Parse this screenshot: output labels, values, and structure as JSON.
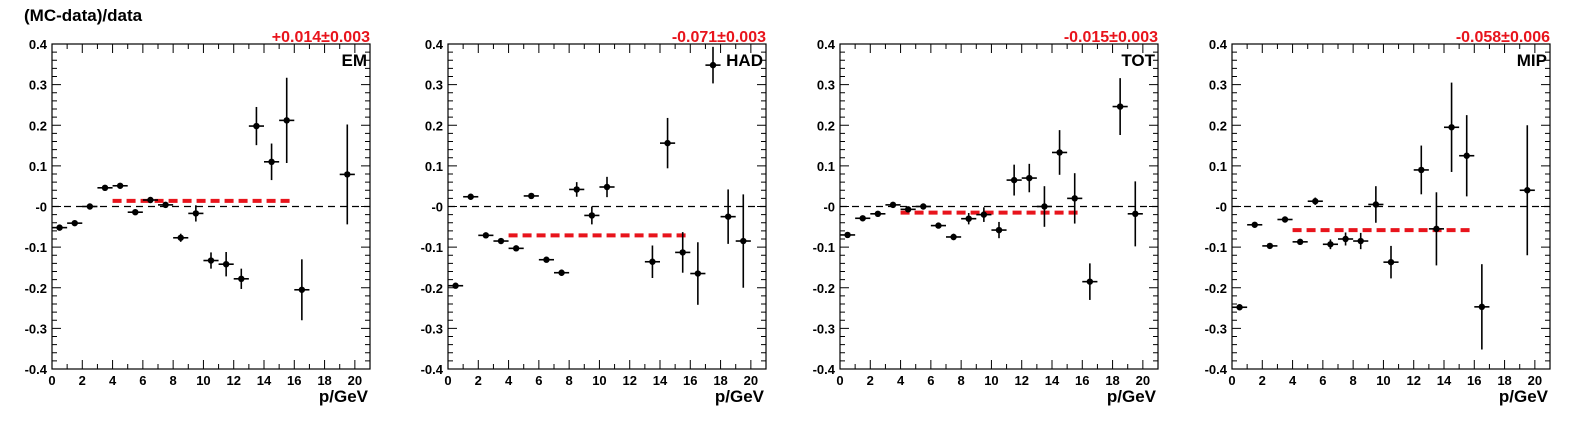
{
  "figure": {
    "ylabel": "(MC-data)/data"
  },
  "chart_data": [
    {
      "type": "scatter",
      "label": "EM",
      "fit_text": "+0.014±0.003",
      "fit_value": 0.014,
      "fit_range": [
        4,
        16
      ],
      "xlabel": "p/GeV",
      "xlim": [
        0,
        21
      ],
      "ylim": [
        -0.4,
        0.4
      ],
      "xticks": [
        0,
        2,
        4,
        6,
        8,
        10,
        12,
        14,
        16,
        18,
        20
      ],
      "yticks": [
        -0.4,
        -0.3,
        -0.2,
        -0.1,
        0,
        0.1,
        0.2,
        0.3,
        0.4
      ],
      "ytick_labels": [
        "-0.4",
        "-0.3",
        "-0.2",
        "-0.1",
        "-0",
        "0.1",
        "0.2",
        "0.3",
        "0.4"
      ],
      "reference_line": 0,
      "points": [
        {
          "x": 0.5,
          "y": -0.052,
          "err": 0.006
        },
        {
          "x": 1.5,
          "y": -0.041,
          "err": 0.006
        },
        {
          "x": 2.5,
          "y": 0.0,
          "err": 0.004
        },
        {
          "x": 3.5,
          "y": 0.046,
          "err": 0.004
        },
        {
          "x": 4.5,
          "y": 0.051,
          "err": 0.004
        },
        {
          "x": 5.5,
          "y": -0.014,
          "err": 0.005
        },
        {
          "x": 6.5,
          "y": 0.016,
          "err": 0.005
        },
        {
          "x": 7.5,
          "y": 0.004,
          "err": 0.006
        },
        {
          "x": 8.5,
          "y": -0.077,
          "err": 0.01
        },
        {
          "x": 9.5,
          "y": -0.017,
          "err": 0.02
        },
        {
          "x": 10.5,
          "y": -0.133,
          "err": 0.02
        },
        {
          "x": 11.5,
          "y": -0.142,
          "err": 0.03
        },
        {
          "x": 12.5,
          "y": -0.178,
          "err": 0.025
        },
        {
          "x": 13.5,
          "y": 0.198,
          "err": 0.047
        },
        {
          "x": 14.5,
          "y": 0.11,
          "err": 0.045
        },
        {
          "x": 15.5,
          "y": 0.212,
          "err": 0.105
        },
        {
          "x": 16.5,
          "y": -0.205,
          "err": 0.075
        },
        {
          "x": 19.5,
          "y": 0.079,
          "err": 0.123
        }
      ]
    },
    {
      "type": "scatter",
      "label": "HAD",
      "fit_text": "-0.071±0.003",
      "fit_value": -0.071,
      "fit_range": [
        4,
        16
      ],
      "xlabel": "p/GeV",
      "xlim": [
        0,
        21
      ],
      "ylim": [
        -0.4,
        0.4
      ],
      "xticks": [
        0,
        2,
        4,
        6,
        8,
        10,
        12,
        14,
        16,
        18,
        20
      ],
      "yticks": [
        -0.4,
        -0.3,
        -0.2,
        -0.1,
        0,
        0.1,
        0.2,
        0.3,
        0.4
      ],
      "ytick_labels": [
        "-0.4",
        "-0.3",
        "-0.2",
        "-0.1",
        "-0",
        "0.1",
        "0.2",
        "0.3",
        "0.4"
      ],
      "reference_line": 0,
      "points": [
        {
          "x": 0.5,
          "y": -0.195,
          "err": 0.005
        },
        {
          "x": 1.5,
          "y": 0.024,
          "err": 0.005
        },
        {
          "x": 2.5,
          "y": -0.071,
          "err": 0.004
        },
        {
          "x": 3.5,
          "y": -0.085,
          "err": 0.005
        },
        {
          "x": 4.5,
          "y": -0.103,
          "err": 0.005
        },
        {
          "x": 5.5,
          "y": 0.026,
          "err": 0.006
        },
        {
          "x": 6.5,
          "y": -0.131,
          "err": 0.007
        },
        {
          "x": 7.5,
          "y": -0.163,
          "err": 0.008
        },
        {
          "x": 8.5,
          "y": 0.042,
          "err": 0.018
        },
        {
          "x": 9.5,
          "y": -0.022,
          "err": 0.022
        },
        {
          "x": 10.5,
          "y": 0.048,
          "err": 0.025
        },
        {
          "x": 13.5,
          "y": -0.136,
          "err": 0.04
        },
        {
          "x": 14.5,
          "y": 0.156,
          "err": 0.062
        },
        {
          "x": 15.5,
          "y": -0.113,
          "err": 0.05
        },
        {
          "x": 16.5,
          "y": -0.165,
          "err": 0.077
        },
        {
          "x": 17.5,
          "y": 0.348,
          "err": 0.045
        },
        {
          "x": 18.5,
          "y": -0.025,
          "err": 0.067
        },
        {
          "x": 19.5,
          "y": -0.085,
          "err": 0.115
        }
      ]
    },
    {
      "type": "scatter",
      "label": "TOT",
      "fit_text": "-0.015±0.003",
      "fit_value": -0.015,
      "fit_range": [
        4,
        16
      ],
      "xlabel": "p/GeV",
      "xlim": [
        0,
        21
      ],
      "ylim": [
        -0.4,
        0.4
      ],
      "xticks": [
        0,
        2,
        4,
        6,
        8,
        10,
        12,
        14,
        16,
        18,
        20
      ],
      "yticks": [
        -0.4,
        -0.3,
        -0.2,
        -0.1,
        0,
        0.1,
        0.2,
        0.3,
        0.4
      ],
      "ytick_labels": [
        "-0.4",
        "-0.3",
        "-0.2",
        "-0.1",
        "-0",
        "0.1",
        "0.2",
        "0.3",
        "0.4"
      ],
      "reference_line": 0,
      "points": [
        {
          "x": 0.5,
          "y": -0.07,
          "err": 0.004
        },
        {
          "x": 1.5,
          "y": -0.029,
          "err": 0.004
        },
        {
          "x": 2.5,
          "y": -0.018,
          "err": 0.004
        },
        {
          "x": 3.5,
          "y": 0.004,
          "err": 0.004
        },
        {
          "x": 4.5,
          "y": -0.007,
          "err": 0.004
        },
        {
          "x": 5.5,
          "y": 0.0,
          "err": 0.005
        },
        {
          "x": 6.5,
          "y": -0.047,
          "err": 0.006
        },
        {
          "x": 7.5,
          "y": -0.075,
          "err": 0.008
        },
        {
          "x": 8.5,
          "y": -0.03,
          "err": 0.014
        },
        {
          "x": 9.5,
          "y": -0.02,
          "err": 0.018
        },
        {
          "x": 10.5,
          "y": -0.058,
          "err": 0.02
        },
        {
          "x": 11.5,
          "y": 0.065,
          "err": 0.038
        },
        {
          "x": 12.5,
          "y": 0.07,
          "err": 0.035
        },
        {
          "x": 13.5,
          "y": 0.0,
          "err": 0.05
        },
        {
          "x": 14.5,
          "y": 0.133,
          "err": 0.055
        },
        {
          "x": 15.5,
          "y": 0.02,
          "err": 0.062
        },
        {
          "x": 16.5,
          "y": -0.185,
          "err": 0.045
        },
        {
          "x": 18.5,
          "y": 0.246,
          "err": 0.07
        },
        {
          "x": 19.5,
          "y": -0.018,
          "err": 0.08
        }
      ]
    },
    {
      "type": "scatter",
      "label": "MIP",
      "fit_text": "-0.058±0.006",
      "fit_value": -0.058,
      "fit_range": [
        4,
        16
      ],
      "xlabel": "p/GeV",
      "xlim": [
        0,
        21
      ],
      "ylim": [
        -0.4,
        0.4
      ],
      "xticks": [
        0,
        2,
        4,
        6,
        8,
        10,
        12,
        14,
        16,
        18,
        20
      ],
      "yticks": [
        -0.4,
        -0.3,
        -0.2,
        -0.1,
        0,
        0.1,
        0.2,
        0.3,
        0.4
      ],
      "ytick_labels": [
        "-0.4",
        "-0.3",
        "-0.2",
        "-0.1",
        "-0",
        "0.1",
        "0.2",
        "0.3",
        "0.4"
      ],
      "reference_line": 0,
      "points": [
        {
          "x": 0.5,
          "y": -0.248,
          "err": 0.005
        },
        {
          "x": 1.5,
          "y": -0.045,
          "err": 0.005
        },
        {
          "x": 2.5,
          "y": -0.097,
          "err": 0.005
        },
        {
          "x": 3.5,
          "y": -0.032,
          "err": 0.006
        },
        {
          "x": 4.5,
          "y": -0.087,
          "err": 0.006
        },
        {
          "x": 5.5,
          "y": 0.013,
          "err": 0.009
        },
        {
          "x": 6.5,
          "y": -0.093,
          "err": 0.012
        },
        {
          "x": 7.5,
          "y": -0.08,
          "err": 0.016
        },
        {
          "x": 8.5,
          "y": -0.085,
          "err": 0.02
        },
        {
          "x": 9.5,
          "y": 0.005,
          "err": 0.045
        },
        {
          "x": 10.5,
          "y": -0.137,
          "err": 0.04
        },
        {
          "x": 12.5,
          "y": 0.09,
          "err": 0.06
        },
        {
          "x": 13.5,
          "y": -0.055,
          "err": 0.09
        },
        {
          "x": 14.5,
          "y": 0.195,
          "err": 0.11
        },
        {
          "x": 15.5,
          "y": 0.125,
          "err": 0.1
        },
        {
          "x": 16.5,
          "y": -0.247,
          "err": 0.105
        },
        {
          "x": 19.5,
          "y": 0.04,
          "err": 0.16
        }
      ]
    }
  ]
}
